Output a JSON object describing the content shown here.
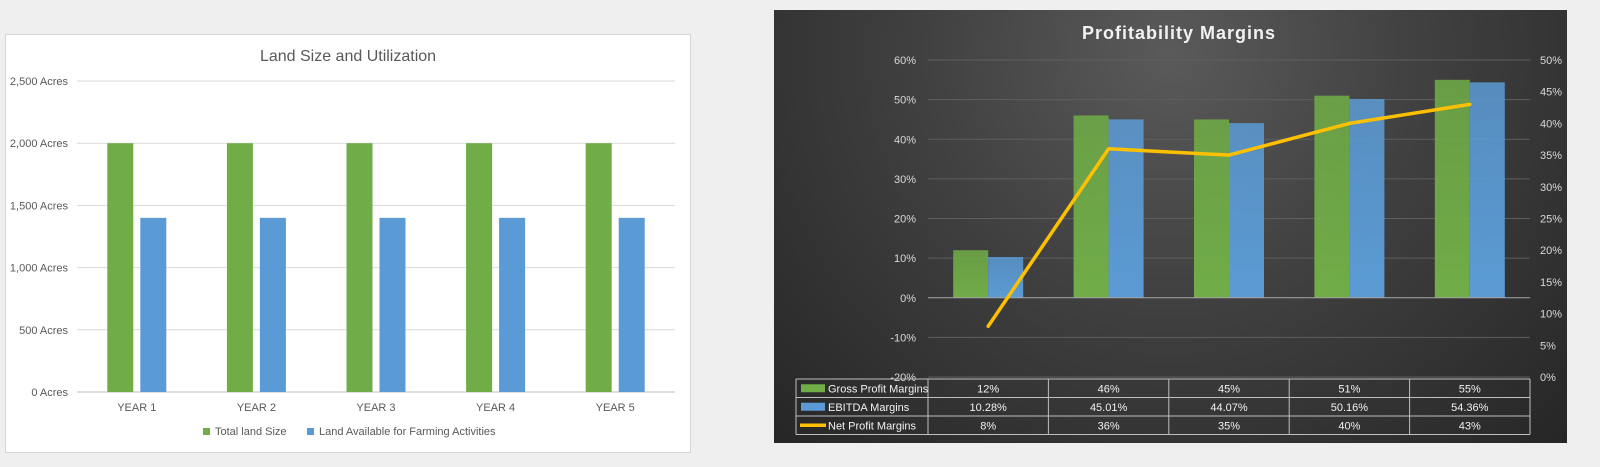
{
  "chart_data": [
    {
      "type": "bar",
      "title": "Land Size and Utilization",
      "xlabel": "",
      "ylabel": "",
      "categories": [
        "YEAR 1",
        "YEAR 2",
        "YEAR 3",
        "YEAR 4",
        "YEAR 5"
      ],
      "series": [
        {
          "name": "Total land Size",
          "values": [
            2000,
            2000,
            2000,
            2000,
            2000
          ],
          "color": "#70ad47"
        },
        {
          "name": "Land  Available for Farming Activities",
          "values": [
            1400,
            1400,
            1400,
            1400,
            1400
          ],
          "color": "#5b9bd5"
        }
      ],
      "ylim": [
        0,
        2500
      ],
      "y_ticks": [
        "0 Acres",
        "500 Acres",
        "1,000 Acres",
        "1,500 Acres",
        "2,000 Acres",
        "2,500 Acres"
      ],
      "grid": true,
      "legend_position": "bottom"
    },
    {
      "type": "bar",
      "title": "Profitability Margins",
      "xlabel": "",
      "ylabel": "",
      "categories": [
        "",
        "",
        "",
        "",
        ""
      ],
      "series": [
        {
          "name": "Gross Profit Margins",
          "values": [
            12,
            46,
            45,
            51,
            55
          ],
          "axis": "left",
          "chart_type": "bar",
          "color": "#70ad47"
        },
        {
          "name": "EBITDA Margins",
          "values": [
            10.28,
            45.01,
            44.07,
            50.16,
            54.36
          ],
          "axis": "left",
          "chart_type": "bar",
          "color": "#5b9bd5"
        },
        {
          "name": "Net Profit Margins",
          "values": [
            8,
            36,
            35,
            40,
            43
          ],
          "axis": "right",
          "chart_type": "line",
          "color": "#ffc000"
        }
      ],
      "ylim": [
        -20,
        60
      ],
      "y_ticks": [
        "-20%",
        "-10%",
        "0%",
        "10%",
        "20%",
        "30%",
        "40%",
        "50%",
        "60%"
      ],
      "y2lim": [
        0,
        50
      ],
      "y2_ticks": [
        "0%",
        "5%",
        "10%",
        "15%",
        "20%",
        "25%",
        "30%",
        "35%",
        "40%",
        "45%",
        "50%"
      ],
      "grid": true,
      "legend_position": "data-table",
      "data_table": {
        "rows": [
          {
            "label": "Gross Profit Margins",
            "cells": [
              "12%",
              "46%",
              "45%",
              "51%",
              "55%"
            ]
          },
          {
            "label": "EBITDA Margins",
            "cells": [
              "10.28%",
              "45.01%",
              "44.07%",
              "50.16%",
              "54.36%"
            ]
          },
          {
            "label": "Net Profit Margins",
            "cells": [
              "8%",
              "36%",
              "35%",
              "40%",
              "43%"
            ]
          }
        ]
      }
    }
  ]
}
